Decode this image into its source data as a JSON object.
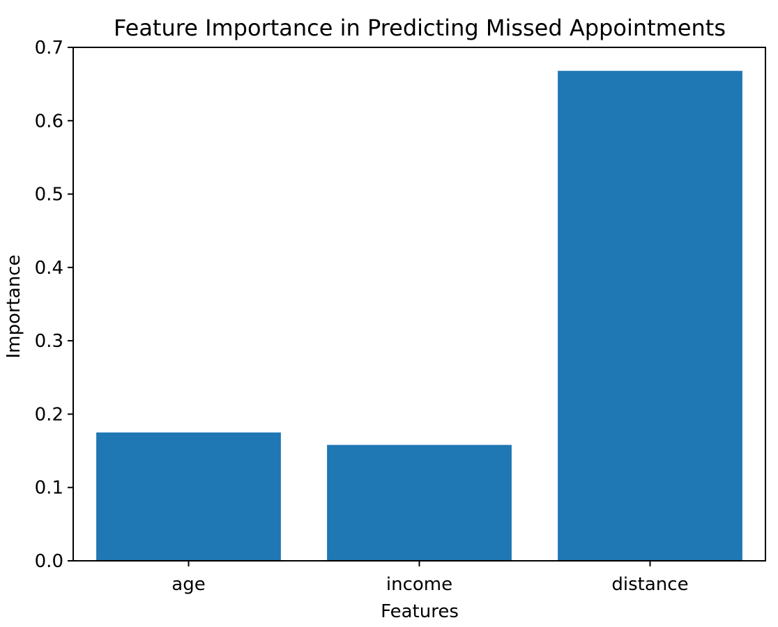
{
  "chart_data": {
    "type": "bar",
    "title": "Feature Importance in Predicting Missed Appointments",
    "xlabel": "Features",
    "ylabel": "Importance",
    "categories": [
      "age",
      "income",
      "distance"
    ],
    "values": [
      0.175,
      0.158,
      0.668
    ],
    "ylim": [
      0,
      0.7
    ],
    "yticks": [
      "0.0",
      "0.1",
      "0.2",
      "0.3",
      "0.4",
      "0.5",
      "0.6",
      "0.7"
    ],
    "grid": false,
    "legend": "none",
    "bar_color": "#1f77b4"
  }
}
